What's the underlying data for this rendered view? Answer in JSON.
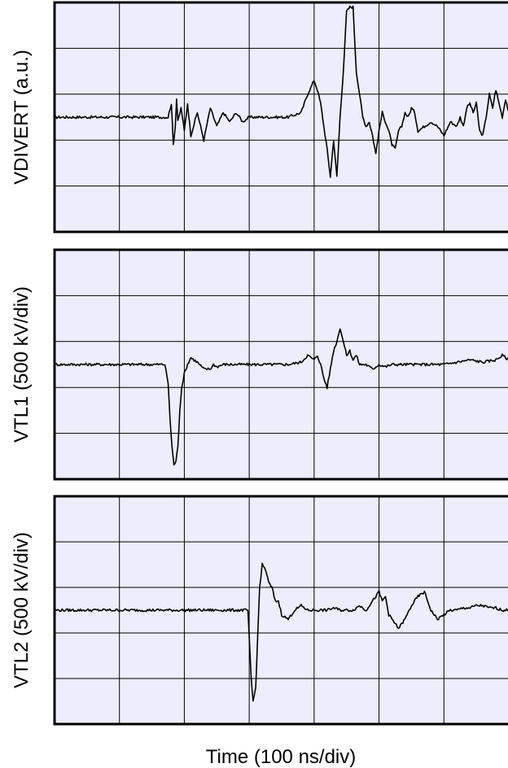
{
  "colors": {
    "plot_bg": "#EDEDFB",
    "grid": "#000000",
    "trace": "#000000"
  },
  "chart_data": [
    {
      "type": "line",
      "ylabel": "VDIVERT (a.u.)",
      "xlabel": "",
      "x_divisions": 7,
      "y_divisions": 5,
      "ylim": [
        -2.5,
        2.5
      ],
      "grid": true,
      "series": [
        {
          "x": [
            0,
            1.4,
            1.75,
            1.8,
            1.83,
            1.86,
            1.88,
            1.9,
            1.95,
            2.0,
            2.05,
            2.1,
            2.2,
            2.3,
            2.4,
            2.5,
            2.6,
            2.7,
            2.8,
            2.9,
            3.0,
            3.2,
            3.4,
            3.6,
            3.8,
            3.9,
            4.0,
            4.05,
            4.1,
            4.15,
            4.2,
            4.25,
            4.3,
            4.35,
            4.4,
            4.45,
            4.5,
            4.55,
            4.6,
            4.65,
            4.7,
            4.75,
            4.8,
            4.85,
            4.9,
            4.95,
            5.0,
            5.05,
            5.1,
            5.15,
            5.2,
            5.25,
            5.3,
            5.35,
            5.4,
            5.45,
            5.5,
            5.55,
            5.6,
            5.7,
            5.8,
            5.9,
            6.0,
            6.1,
            6.2,
            6.25,
            6.3,
            6.35,
            6.4,
            6.45,
            6.5,
            6.55,
            6.6,
            6.65,
            6.7,
            6.75,
            6.8,
            6.85,
            6.9,
            6.95,
            7.0
          ],
          "y": [
            0,
            0,
            0,
            0.3,
            -0.6,
            -0.2,
            0.4,
            -0.1,
            0.2,
            -0.3,
            0.3,
            -0.4,
            0.1,
            -0.5,
            0.2,
            -0.2,
            0.1,
            -0.1,
            0.1,
            -0.1,
            0,
            0,
            0,
            0,
            0.1,
            0.5,
            0.8,
            0.6,
            0.3,
            -0.2,
            -0.7,
            -1.3,
            -0.5,
            -1.3,
            0,
            1.0,
            2.3,
            2.4,
            2.4,
            1.0,
            0.5,
            0,
            -0.2,
            -0.1,
            -0.4,
            -0.8,
            -0.3,
            0.1,
            -0.1,
            -0.3,
            -0.6,
            -0.7,
            -0.3,
            -0.2,
            0.1,
            0,
            0.2,
            0.1,
            -0.3,
            -0.2,
            -0.1,
            -0.2,
            -0.4,
            -0.1,
            -0.2,
            0,
            -0.2,
            0.2,
            0.3,
            0.1,
            0.3,
            -0.3,
            -0.4,
            0,
            0.5,
            0.2,
            0.6,
            0.3,
            0,
            0.4,
            0.1
          ]
        }
      ]
    },
    {
      "type": "line",
      "ylabel": "VTL1 (500 kV/div)",
      "xlabel": "",
      "x_divisions": 7,
      "y_divisions": 5,
      "ylim": [
        -2.5,
        2.5
      ],
      "grid": true,
      "series": [
        {
          "x": [
            0,
            1.3,
            1.7,
            1.75,
            1.78,
            1.81,
            1.84,
            1.87,
            1.9,
            1.93,
            1.96,
            2.0,
            2.05,
            2.1,
            2.15,
            2.2,
            2.3,
            2.4,
            2.45,
            2.5,
            2.6,
            2.7,
            2.8,
            3.0,
            3.2,
            3.4,
            3.6,
            3.8,
            3.9,
            4.0,
            4.05,
            4.1,
            4.15,
            4.2,
            4.25,
            4.3,
            4.35,
            4.4,
            4.45,
            4.5,
            4.55,
            4.6,
            4.65,
            4.7,
            4.8,
            4.9,
            5.0,
            5.1,
            5.2,
            5.4,
            5.6,
            5.8,
            6.0,
            6.2,
            6.4,
            6.6,
            6.8,
            6.9,
            7.0
          ],
          "y": [
            0,
            0,
            0,
            -0.4,
            -1.2,
            -1.8,
            -2.2,
            -2.1,
            -1.8,
            -1.0,
            -0.5,
            -0.2,
            0,
            0.15,
            0.1,
            0.05,
            -0.1,
            -0.1,
            0,
            -0.05,
            0,
            0,
            0,
            0,
            0,
            0,
            0,
            0.05,
            0.2,
            0.1,
            0.2,
            0,
            -0.3,
            -0.5,
            -0.1,
            0.3,
            0.5,
            0.8,
            0.5,
            0.2,
            0.3,
            0.1,
            0.2,
            0,
            0,
            -0.1,
            0,
            -0.05,
            0,
            0,
            0,
            0,
            0,
            0.05,
            0.1,
            0.05,
            0.1,
            0.2,
            0.1
          ]
        }
      ]
    },
    {
      "type": "line",
      "ylabel": "VTL2 (500 kV/div)",
      "xlabel": "Time (100 ns/div)",
      "x_divisions": 7,
      "y_divisions": 5,
      "ylim": [
        -2.5,
        2.5
      ],
      "grid": true,
      "series": [
        {
          "x": [
            0,
            2.5,
            2.98,
            3.0,
            3.03,
            3.06,
            3.1,
            3.13,
            3.16,
            3.2,
            3.25,
            3.3,
            3.35,
            3.4,
            3.45,
            3.5,
            3.6,
            3.7,
            3.8,
            3.9,
            4.0,
            4.1,
            4.2,
            4.3,
            4.4,
            4.5,
            4.6,
            4.7,
            4.8,
            4.9,
            5.0,
            5.05,
            5.1,
            5.15,
            5.2,
            5.3,
            5.4,
            5.5,
            5.6,
            5.7,
            5.75,
            5.8,
            5.9,
            6.0,
            6.1,
            6.2,
            6.3,
            6.4,
            6.5,
            6.6,
            6.7,
            6.8,
            6.9,
            7.0
          ],
          "y": [
            0,
            0,
            0,
            -0.6,
            -1.5,
            -2.0,
            -1.7,
            -0.6,
            0.5,
            1.0,
            0.9,
            0.6,
            0.5,
            0.2,
            0.2,
            -0.1,
            -0.2,
            0,
            0.1,
            0,
            0,
            0,
            0,
            0.05,
            0,
            0,
            0,
            0.1,
            0,
            0.2,
            0.4,
            0.2,
            0.3,
            -0.1,
            -0.2,
            -0.4,
            -0.2,
            0.1,
            0.3,
            0.4,
            0.2,
            0,
            -0.2,
            -0.1,
            0,
            0,
            0.05,
            0.05,
            0.1,
            0.1,
            0.05,
            0.05,
            0,
            0
          ]
        }
      ]
    }
  ]
}
